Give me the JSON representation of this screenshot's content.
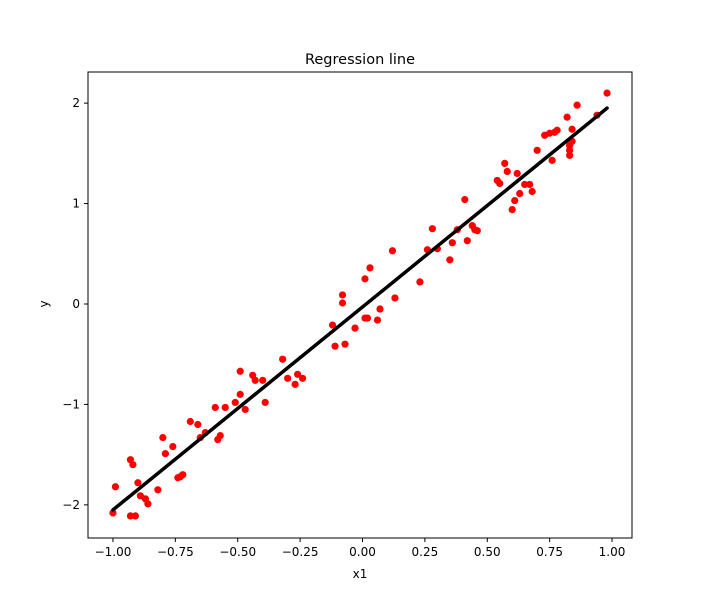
{
  "chart_data": {
    "type": "scatter",
    "title": "Regression line",
    "xlabel": "x1",
    "ylabel": "y",
    "xlim": [
      -1.1,
      1.08
    ],
    "ylim": [
      -2.33,
      2.31
    ],
    "xticks": [
      -1.0,
      -0.75,
      -0.5,
      -0.25,
      0.0,
      0.25,
      0.5,
      0.75,
      1.0
    ],
    "xtick_labels": [
      "−1.00",
      "−0.75",
      "−0.50",
      "−0.25",
      "0.00",
      "0.25",
      "0.50",
      "0.75",
      "1.00"
    ],
    "yticks": [
      -2,
      -1,
      0,
      1,
      2
    ],
    "ytick_labels": [
      "−2",
      "−1",
      "0",
      "1",
      "2"
    ],
    "grid": false,
    "colors": {
      "points": "#ff0000",
      "line": "#000000"
    },
    "series": [
      {
        "kind": "scatter",
        "points": [
          [
            -1.0,
            -2.08
          ],
          [
            -0.99,
            -1.82
          ],
          [
            -0.93,
            -1.55
          ],
          [
            -0.92,
            -1.6
          ],
          [
            -0.93,
            -2.11
          ],
          [
            -0.91,
            -2.11
          ],
          [
            -0.9,
            -1.78
          ],
          [
            -0.89,
            -1.91
          ],
          [
            -0.87,
            -1.94
          ],
          [
            -0.86,
            -1.99
          ],
          [
            -0.82,
            -1.85
          ],
          [
            -0.8,
            -1.33
          ],
          [
            -0.79,
            -1.49
          ],
          [
            -0.76,
            -1.42
          ],
          [
            -0.74,
            -1.73
          ],
          [
            -0.73,
            -1.72
          ],
          [
            -0.72,
            -1.7
          ],
          [
            -0.69,
            -1.17
          ],
          [
            -0.66,
            -1.2
          ],
          [
            -0.65,
            -1.33
          ],
          [
            -0.63,
            -1.28
          ],
          [
            -0.59,
            -1.03
          ],
          [
            -0.58,
            -1.35
          ],
          [
            -0.57,
            -1.31
          ],
          [
            -0.55,
            -1.03
          ],
          [
            -0.51,
            -0.98
          ],
          [
            -0.49,
            -0.67
          ],
          [
            -0.49,
            -0.9
          ],
          [
            -0.47,
            -1.05
          ],
          [
            -0.44,
            -0.71
          ],
          [
            -0.43,
            -0.76
          ],
          [
            -0.4,
            -0.76
          ],
          [
            -0.39,
            -0.98
          ],
          [
            -0.32,
            -0.55
          ],
          [
            -0.3,
            -0.74
          ],
          [
            -0.27,
            -0.8
          ],
          [
            -0.26,
            -0.7
          ],
          [
            -0.24,
            -0.74
          ],
          [
            -0.12,
            -0.21
          ],
          [
            -0.11,
            -0.42
          ],
          [
            -0.08,
            0.01
          ],
          [
            -0.08,
            0.09
          ],
          [
            -0.07,
            -0.4
          ],
          [
            -0.03,
            -0.24
          ],
          [
            0.01,
            0.25
          ],
          [
            0.01,
            -0.14
          ],
          [
            0.02,
            -0.14
          ],
          [
            0.03,
            0.36
          ],
          [
            0.06,
            -0.16
          ],
          [
            0.07,
            -0.05
          ],
          [
            0.12,
            0.53
          ],
          [
            0.13,
            0.06
          ],
          [
            0.23,
            0.22
          ],
          [
            0.26,
            0.54
          ],
          [
            0.28,
            0.75
          ],
          [
            0.3,
            0.55
          ],
          [
            0.35,
            0.44
          ],
          [
            0.36,
            0.61
          ],
          [
            0.38,
            0.74
          ],
          [
            0.41,
            1.04
          ],
          [
            0.42,
            0.63
          ],
          [
            0.44,
            0.78
          ],
          [
            0.45,
            0.74
          ],
          [
            0.46,
            0.73
          ],
          [
            0.54,
            1.23
          ],
          [
            0.55,
            1.2
          ],
          [
            0.57,
            1.4
          ],
          [
            0.58,
            1.32
          ],
          [
            0.6,
            0.94
          ],
          [
            0.61,
            1.03
          ],
          [
            0.62,
            1.3
          ],
          [
            0.63,
            1.1
          ],
          [
            0.65,
            1.19
          ],
          [
            0.67,
            1.19
          ],
          [
            0.68,
            1.12
          ],
          [
            0.7,
            1.53
          ],
          [
            0.73,
            1.68
          ],
          [
            0.75,
            1.7
          ],
          [
            0.76,
            1.43
          ],
          [
            0.77,
            1.71
          ],
          [
            0.78,
            1.73
          ],
          [
            0.82,
            1.86
          ],
          [
            0.83,
            1.48
          ],
          [
            0.83,
            1.53
          ],
          [
            0.83,
            1.58
          ],
          [
            0.84,
            1.62
          ],
          [
            0.84,
            1.74
          ],
          [
            0.86,
            1.98
          ],
          [
            0.94,
            1.88
          ],
          [
            0.98,
            2.1
          ]
        ]
      },
      {
        "kind": "line",
        "x": [
          -1.0,
          0.98
        ],
        "y": [
          -2.05,
          1.95
        ]
      }
    ]
  }
}
